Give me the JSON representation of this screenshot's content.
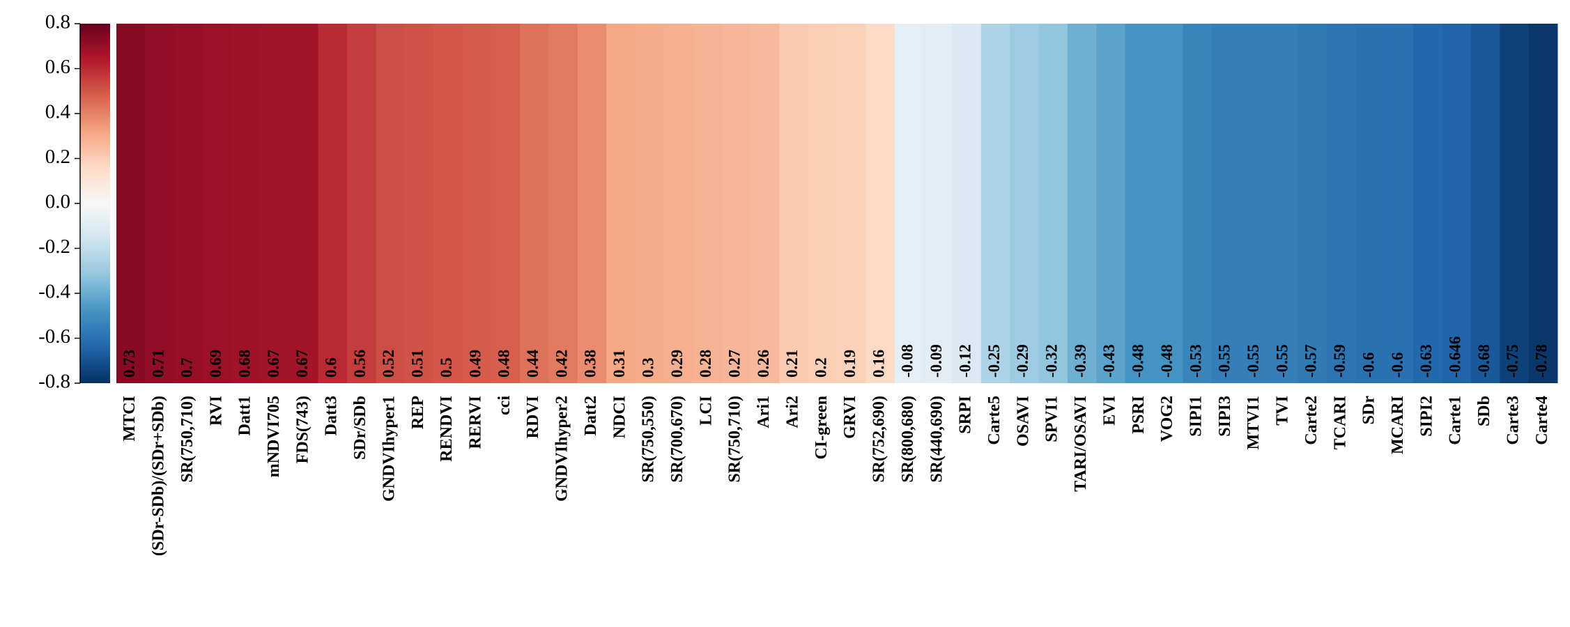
{
  "chart_data": {
    "type": "heatmap",
    "categories": [
      "MTCI",
      "(SDr-SDb)/(SDr+SDb)",
      "SR(750,710)",
      "RVI",
      "Datt1",
      "mNDVI705",
      "FDS(743)",
      "Datt3",
      "SDr/SDb",
      "GNDVIhyper1",
      "REP",
      "RENDVI",
      "RERVI",
      "cci",
      "RDVI",
      "GNDVIhyper2",
      "Datt2",
      "NDCI",
      "SR(750,550)",
      "SR(700,670)",
      "LCI",
      "SR(750,710)",
      "Ari1",
      "Ari2",
      "CI-green",
      "GRVI",
      "SR(752,690)",
      "SR(800,680)",
      "SR(440,690)",
      "SRPI",
      "Carte5",
      "OSAVI",
      "SPVI1",
      "TARI/OSAVI",
      "EVI",
      "PSRI",
      "VOG2",
      "SIPI1",
      "SIPI3",
      "MTVI1",
      "TVI",
      "Carte2",
      "TCARI",
      "SDr",
      "MCARI",
      "SIPI2",
      "Carte1",
      "SDb",
      "Carte3",
      "Carte4"
    ],
    "values": [
      0.73,
      0.71,
      0.7,
      0.69,
      0.68,
      0.67,
      0.67,
      0.6,
      0.56,
      0.52,
      0.51,
      0.5,
      0.49,
      0.48,
      0.44,
      0.42,
      0.38,
      0.31,
      0.3,
      0.29,
      0.28,
      0.27,
      0.26,
      0.21,
      0.2,
      0.19,
      0.16,
      -0.08,
      -0.09,
      -0.12,
      -0.25,
      -0.29,
      -0.32,
      -0.39,
      -0.43,
      -0.48,
      -0.48,
      -0.53,
      -0.55,
      -0.55,
      -0.55,
      -0.57,
      -0.59,
      -0.6,
      -0.6,
      -0.63,
      -0.646,
      -0.68,
      -0.75,
      -0.78
    ],
    "clim": [
      -0.8,
      0.8
    ],
    "cticks": [
      0.8,
      0.6,
      0.4,
      0.2,
      {
        "value": 0,
        "label": "0.0"
      },
      -0.2,
      -0.4,
      -0.6,
      -0.8
    ],
    "colormap": [
      "#053061",
      "#2166ac",
      "#4393c3",
      "#92c5de",
      "#d1e5f0",
      "#f7f7f7",
      "#fddbc7",
      "#f4a582",
      "#d6604d",
      "#b2182b",
      "#67001f"
    ]
  }
}
